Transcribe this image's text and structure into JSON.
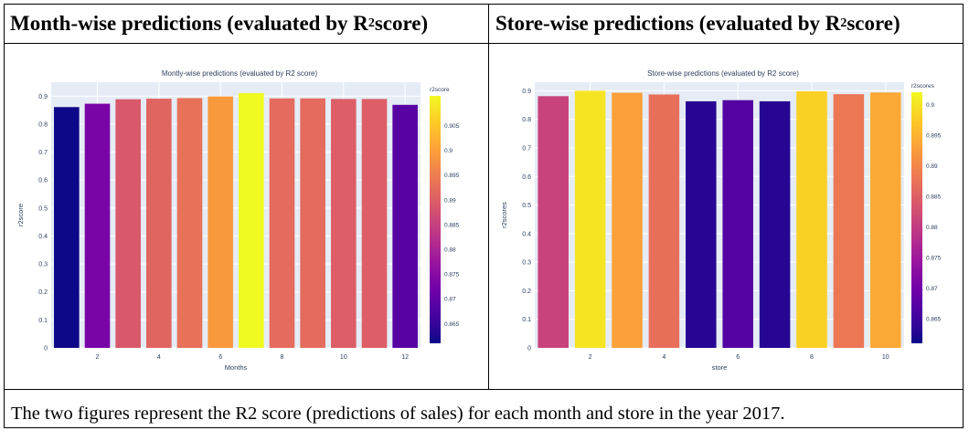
{
  "table": {
    "left_header": {
      "text": "Month-wise predictions (evaluated by R",
      "sup": "2",
      "suffix": " score)"
    },
    "right_header": {
      "text": "Store-wise predictions (evaluated by R",
      "sup": "2",
      "suffix": " score)"
    },
    "caption": "The two figures represent the R2 score (predictions of sales) for each month and store in the year 2017."
  },
  "colors": {
    "plot_bg": "#e5ecf6",
    "colorscale": [
      "#0d0887",
      "#46039f",
      "#7201a8",
      "#9c179e",
      "#bd3786",
      "#d8576b",
      "#ed7953",
      "#fb9f3a",
      "#fdca26",
      "#f0f921"
    ]
  },
  "chart_data": [
    {
      "type": "bar",
      "title": "Montly-wise predictions (evaluated by R2 score)",
      "xlabel": "Months",
      "ylabel": "r2score",
      "x": [
        1,
        2,
        3,
        4,
        5,
        6,
        7,
        8,
        9,
        10,
        11,
        12
      ],
      "values": [
        0.861,
        0.873,
        0.889,
        0.891,
        0.893,
        0.899,
        0.911,
        0.892,
        0.892,
        0.89,
        0.89,
        0.869
      ],
      "ylim": [
        0,
        0.95
      ],
      "yticks": [
        0,
        0.1,
        0.2,
        0.3,
        0.4,
        0.5,
        0.6,
        0.7,
        0.8,
        0.9
      ],
      "xticks": [
        2,
        4,
        6,
        8,
        10,
        12
      ],
      "colorbar": {
        "title": "r2score",
        "range": [
          0.861,
          0.911
        ],
        "ticks": [
          0.865,
          0.87,
          0.875,
          0.88,
          0.885,
          0.89,
          0.895,
          0.9,
          0.905
        ]
      }
    },
    {
      "type": "bar",
      "title": "Store-wise predictions (evaluated by R2 score)",
      "xlabel": "store",
      "ylabel": "r2scores",
      "x": [
        1,
        2,
        3,
        4,
        5,
        6,
        7,
        8,
        9,
        10
      ],
      "values": [
        0.881,
        0.9,
        0.893,
        0.887,
        0.863,
        0.867,
        0.863,
        0.898,
        0.888,
        0.894
      ],
      "ylim": [
        0,
        0.93
      ],
      "yticks": [
        0,
        0.1,
        0.2,
        0.3,
        0.4,
        0.5,
        0.6,
        0.7,
        0.8,
        0.9
      ],
      "xticks": [
        2,
        4,
        6,
        8,
        10
      ],
      "colorbar": {
        "title": "r2scores",
        "range": [
          0.861,
          0.902
        ],
        "ticks": [
          0.865,
          0.87,
          0.875,
          0.88,
          0.885,
          0.89,
          0.895,
          0.9
        ]
      }
    }
  ]
}
